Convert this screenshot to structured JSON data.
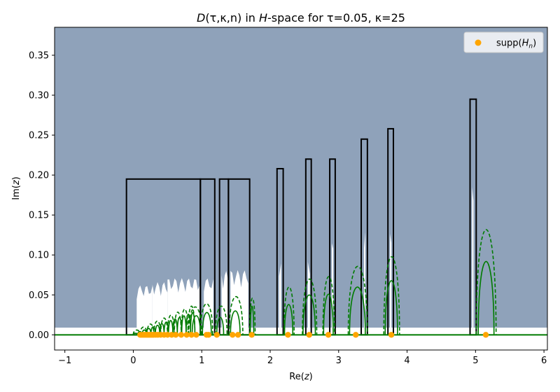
{
  "chart_data": {
    "type": "scatter",
    "title_parts": {
      "d": "D",
      "d_args": "(τ,κ,n) in ",
      "h": "H",
      "rest": "-space for τ=0.05, κ=25"
    },
    "xlabel_parts": {
      "pre": "Re(",
      "var": "z",
      "post": ")"
    },
    "ylabel_parts": {
      "pre": "Im(",
      "var": "z",
      "post": ")"
    },
    "xlim": [
      -1.15,
      6.05
    ],
    "ylim": [
      -0.019,
      0.385
    ],
    "xticks": [
      -1,
      0,
      1,
      2,
      3,
      4,
      5,
      6
    ],
    "xtick_labels": [
      "−1",
      "0",
      "1",
      "2",
      "3",
      "4",
      "5",
      "6"
    ],
    "yticks": [
      0.0,
      0.05,
      0.1,
      0.15,
      0.2,
      0.25,
      0.3,
      0.35
    ],
    "ytick_labels": [
      "0.00",
      "0.05",
      "0.10",
      "0.15",
      "0.20",
      "0.25",
      "0.30",
      "0.35"
    ],
    "grid": false,
    "legend_placement": "top-right",
    "legend": {
      "label_pre": "supp(",
      "label_var": "H",
      "label_sub": "n",
      "label_post": ")"
    },
    "colors": {
      "region_fill": "#8fa2ba",
      "hole_fill": "#ffffff",
      "box_stroke": "#000000",
      "curve": "#007b00",
      "support_point": "#ffa500"
    },
    "white_band_ymax": 0.009,
    "boxes": [
      {
        "x0": -0.1,
        "x1": 0.98,
        "y": 0.195
      },
      {
        "x0": 0.98,
        "x1": 1.19,
        "y": 0.195
      },
      {
        "x0": 1.26,
        "x1": 1.39,
        "y": 0.195
      },
      {
        "x0": 1.39,
        "x1": 1.7,
        "y": 0.195
      },
      {
        "x0": 2.1,
        "x1": 2.19,
        "y": 0.208
      },
      {
        "x0": 2.52,
        "x1": 2.6,
        "y": 0.22
      },
      {
        "x0": 2.87,
        "x1": 2.95,
        "y": 0.22
      },
      {
        "x0": 3.33,
        "x1": 3.42,
        "y": 0.245
      },
      {
        "x0": 3.72,
        "x1": 3.8,
        "y": 0.258
      },
      {
        "x0": 4.92,
        "x1": 5.01,
        "y": 0.295
      }
    ],
    "holes": [
      {
        "x0": 0.05,
        "x1": 0.28,
        "ymax": 0.062
      },
      {
        "x0": 0.28,
        "x1": 0.5,
        "ymax": 0.066
      },
      {
        "x0": 0.5,
        "x1": 0.97,
        "ymax": 0.071
      },
      {
        "x0": 1.03,
        "x1": 1.17,
        "ymax": 0.071
      },
      {
        "x0": 1.29,
        "x1": 1.38,
        "ymax": 0.08
      },
      {
        "x0": 1.42,
        "x1": 1.68,
        "ymax": 0.081
      },
      {
        "x0": 2.13,
        "x1": 2.16,
        "ymax": 0.092
      },
      {
        "x0": 2.55,
        "x1": 2.58,
        "ymax": 0.101
      },
      {
        "x0": 2.9,
        "x1": 2.92,
        "ymax": 0.115
      },
      {
        "x0": 3.37,
        "x1": 3.39,
        "ymax": 0.13
      },
      {
        "x0": 3.75,
        "x1": 3.77,
        "ymax": 0.145
      },
      {
        "x0": 4.95,
        "x1": 4.97,
        "ymax": 0.185
      }
    ],
    "arcs_solid": [
      {
        "x0": 0.86,
        "x1": 0.98,
        "h": 0.024
      },
      {
        "x0": 1.01,
        "x1": 1.14,
        "h": 0.028
      },
      {
        "x0": 1.22,
        "x1": 1.32,
        "h": 0.022
      },
      {
        "x0": 1.42,
        "x1": 1.56,
        "h": 0.03
      },
      {
        "x0": 1.71,
        "x1": 1.76,
        "h": 0.036
      },
      {
        "x0": 2.21,
        "x1": 2.33,
        "h": 0.038
      },
      {
        "x0": 2.48,
        "x1": 2.66,
        "h": 0.05
      },
      {
        "x0": 2.78,
        "x1": 2.92,
        "h": 0.051
      },
      {
        "x0": 3.16,
        "x1": 3.39,
        "h": 0.06
      },
      {
        "x0": 3.68,
        "x1": 3.86,
        "h": 0.068
      },
      {
        "x0": 5.04,
        "x1": 5.27,
        "h": 0.092
      }
    ],
    "arcs_dashed": [
      {
        "x0": 0.81,
        "x1": 1.0,
        "h": 0.035
      },
      {
        "x0": 0.98,
        "x1": 1.16,
        "h": 0.039
      },
      {
        "x0": 1.2,
        "x1": 1.37,
        "h": 0.036
      },
      {
        "x0": 1.4,
        "x1": 1.6,
        "h": 0.048
      },
      {
        "x0": 1.7,
        "x1": 1.78,
        "h": 0.046
      },
      {
        "x0": 2.2,
        "x1": 2.35,
        "h": 0.06
      },
      {
        "x0": 2.47,
        "x1": 2.68,
        "h": 0.07
      },
      {
        "x0": 2.77,
        "x1": 2.94,
        "h": 0.073
      },
      {
        "x0": 3.14,
        "x1": 3.42,
        "h": 0.086
      },
      {
        "x0": 3.66,
        "x1": 3.89,
        "h": 0.098
      },
      {
        "x0": 5.01,
        "x1": 5.3,
        "h": 0.132
      }
    ],
    "cluster_arcs": {
      "solid": {
        "x_start": 0.0,
        "x_end": 0.9,
        "count": 14,
        "h_start": 0.002,
        "h_end": 0.028
      },
      "dashed": {
        "x_start": 0.0,
        "x_end": 0.9,
        "count": 9,
        "h_start": 0.006,
        "h_end": 0.036
      }
    },
    "support_points": [
      0.1,
      0.12,
      0.14,
      0.16,
      0.18,
      0.2,
      0.22,
      0.24,
      0.26,
      0.28,
      0.3,
      0.33,
      0.36,
      0.4,
      0.45,
      0.5,
      0.56,
      0.62,
      0.7,
      0.78,
      0.85,
      0.92,
      1.07,
      1.1,
      1.22,
      1.45,
      1.53,
      1.73,
      2.26,
      2.57,
      2.85,
      3.25,
      3.77,
      5.15
    ]
  }
}
